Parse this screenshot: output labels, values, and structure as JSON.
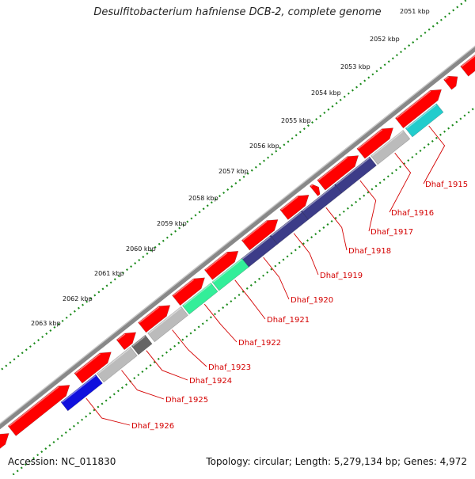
{
  "title": "Desulfitobacterium hafniense DCB-2, complete genome",
  "accession": "Accession: NC_011830",
  "info": "Topology: circular; Length: 5,279,134 bp; Genes: 4,972",
  "colors": {
    "backbone": "#888888",
    "forward_gene": "#ff0000",
    "tick": "#1a8a1a",
    "label": "#d40000"
  },
  "kbp_ticks": [
    "2051 kbp",
    "2052 kbp",
    "2053 kbp",
    "2054 kbp",
    "2055 kbp",
    "2056 kbp",
    "2057 kbp",
    "2058 kbp",
    "2059 kbp",
    "2060 kbp",
    "2061 kbp",
    "2062 kbp",
    "2063 kbp"
  ],
  "genes": [
    {
      "label": "Dhaf_1915",
      "color": "#22cccc"
    },
    {
      "label": "Dhaf_1916",
      "color": "#bbbbbb"
    },
    {
      "label": "Dhaf_1917",
      "color": "#3c3c88"
    },
    {
      "label": "Dhaf_1918",
      "color": "#3c3c88"
    },
    {
      "label": "Dhaf_1919",
      "color": "#3c3c88"
    },
    {
      "label": "Dhaf_1920",
      "color": "#3c3c88"
    },
    {
      "label": "Dhaf_1921",
      "color": "#33ee99"
    },
    {
      "label": "Dhaf_1922",
      "color": "#33ee99"
    },
    {
      "label": "Dhaf_1923",
      "color": "#bbbbbb"
    },
    {
      "label": "Dhaf_1924",
      "color": "#666666"
    },
    {
      "label": "Dhaf_1925",
      "color": "#bbbbbb"
    },
    {
      "label": "Dhaf_1926",
      "color": "#1010dd"
    }
  ]
}
